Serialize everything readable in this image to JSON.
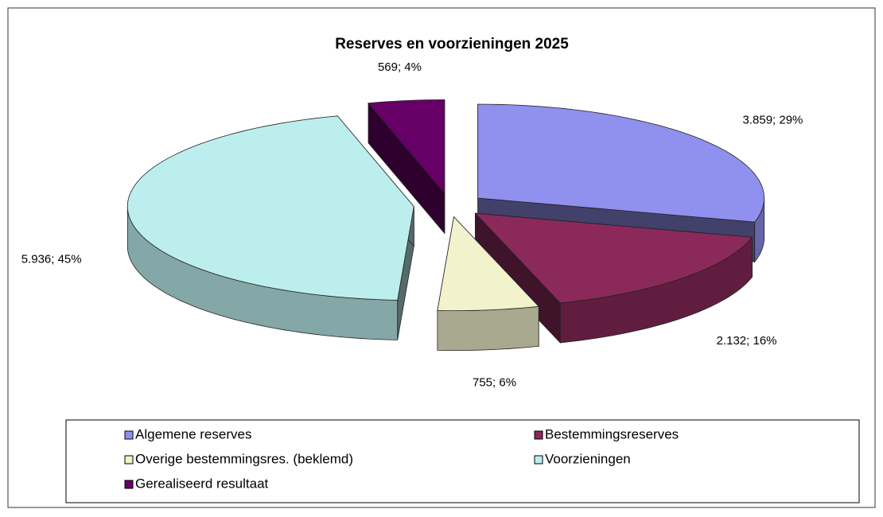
{
  "chart_data": {
    "type": "pie3d",
    "title": "Reserves en voorzieningen 2025",
    "categories": [
      "Algemene reserves",
      "Bestemmingsreserves",
      "Overige bestemmingsres. (beklemd)",
      "Voorzieningen",
      "Gerealiseerd resultaat"
    ],
    "values": [
      3859,
      2132,
      755,
      5936,
      569
    ],
    "value_labels": [
      "3.859; 29%",
      "2.132; 16%",
      "755; 6%",
      "5.936; 45%",
      "569; 4%"
    ],
    "colors": [
      "#9090ee",
      "#8b2a5a",
      "#f2f2cc",
      "#bdeeee",
      "#660066"
    ],
    "legend": "bottom"
  }
}
